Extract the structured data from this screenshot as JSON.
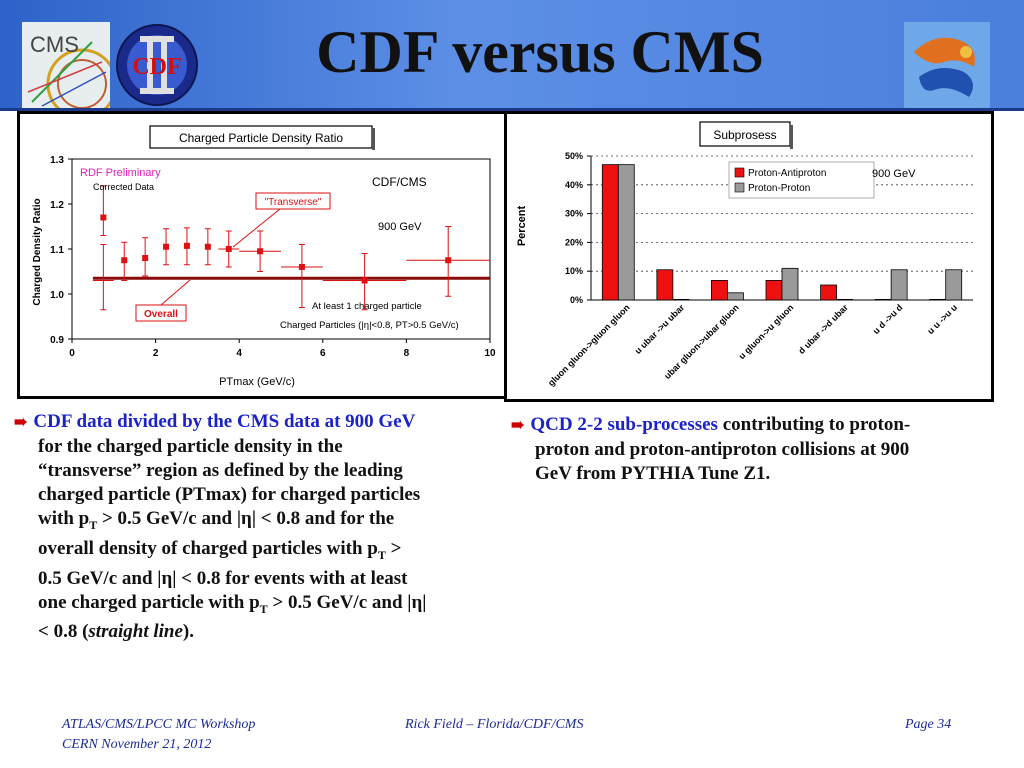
{
  "slide": {
    "title": "CDF versus CMS",
    "logos": {
      "cms": "CMS",
      "cdf": "CDF"
    }
  },
  "chart_data": [
    {
      "type": "scatter",
      "title": "Charged Particle Density Ratio",
      "xlabel": "PTmax  (GeV/c)",
      "ylabel": "Charged Density Ratio",
      "xlim": [
        0,
        10
      ],
      "ylim": [
        0.9,
        1.3
      ],
      "xticks": [
        "0",
        "2",
        "4",
        "6",
        "8",
        "10"
      ],
      "yticks": [
        "0.9",
        "1.0",
        "1.1",
        "1.2",
        "1.3"
      ],
      "points": [
        {
          "x": 0.75,
          "y": 1.03,
          "lo": 0.965,
          "hi": 1.11,
          "xerr": 0.25
        },
        {
          "x": 0.75,
          "y": 1.17,
          "lo": 1.13,
          "hi": 1.24,
          "xerr": 0.0
        },
        {
          "x": 1.25,
          "y": 1.075,
          "lo": 1.03,
          "hi": 1.115,
          "xerr": 0.0
        },
        {
          "x": 1.75,
          "y": 1.08,
          "lo": 1.04,
          "hi": 1.125,
          "xerr": 0.0
        },
        {
          "x": 2.25,
          "y": 1.105,
          "lo": 1.065,
          "hi": 1.145,
          "xerr": 0.0
        },
        {
          "x": 2.75,
          "y": 1.107,
          "lo": 1.065,
          "hi": 1.147,
          "xerr": 0.0
        },
        {
          "x": 3.25,
          "y": 1.105,
          "lo": 1.065,
          "hi": 1.145,
          "xerr": 0.0
        },
        {
          "x": 3.75,
          "y": 1.1,
          "lo": 1.06,
          "hi": 1.14,
          "xerr": 0.25
        },
        {
          "x": 4.5,
          "y": 1.095,
          "lo": 1.05,
          "hi": 1.14,
          "xerr": 0.5
        },
        {
          "x": 5.5,
          "y": 1.06,
          "lo": 0.97,
          "hi": 1.11,
          "xerr": 0.5
        },
        {
          "x": 7.0,
          "y": 1.03,
          "lo": 0.965,
          "hi": 1.09,
          "xerr": 1.0
        },
        {
          "x": 9.0,
          "y": 1.075,
          "lo": 0.995,
          "hi": 1.15,
          "xerr": 1.0
        }
      ],
      "overall_line": {
        "y": 1.035,
        "x_from": 0.5,
        "x_to": 10.0
      },
      "labels": {
        "preliminary": "RDF Preliminary",
        "corrected": "Corrected Data",
        "cdfcms": "CDF/CMS",
        "transverse": "\"Transverse\"",
        "energy": "900 GeV",
        "overall": "Overall",
        "atleast": "At least 1 charged particle",
        "cuts": "Charged Particles (|η|<0.8, PT>0.5 GeV/c)"
      },
      "colors": {
        "marker": "#dd1111",
        "overall_line": "#8b0a0a",
        "label_red": "#dd1111",
        "prelim": "#e020c0"
      }
    },
    {
      "type": "bar",
      "title": "Subprosess",
      "ylabel": "Percent",
      "ylim": [
        0,
        50
      ],
      "yticks": [
        "0%",
        "10%",
        "20%",
        "30%",
        "40%",
        "50%"
      ],
      "categories": [
        "gluon gluon->gluon gluon",
        "u ubar ->u ubar",
        "ubar gluon->ubar gluon",
        "u gluon->u gluon",
        "d ubar ->d ubar",
        "u d ->u d",
        "u u ->u u"
      ],
      "series": [
        {
          "name": "Proton-Antiproton",
          "color": "#ee1111",
          "values": [
            47,
            10.5,
            6.8,
            6.8,
            5.2,
            0.2,
            0.2
          ]
        },
        {
          "name": "Proton-Proton",
          "color": "#9a9a9a",
          "values": [
            47,
            0.2,
            2.5,
            11,
            0.2,
            10.5,
            10.5
          ]
        }
      ],
      "annotation": "900 GeV",
      "legend_placement": "top-right"
    }
  ],
  "bullets": {
    "left": {
      "lead": "CDF data divided by the CMS data at 900 GeV",
      "lines": [
        "for the charged particle density in the",
        "“transverse” region as defined by the leading",
        "charged particle (PTmax) for charged particles",
        "with p",
        "overall density of charged particles with p",
        "0.5 GeV/c and |",
        "one charged particle with p",
        "< 0.8 ("
      ],
      "sub_T": "T",
      "eta": "η",
      "l4_rest": " > 0.5 GeV/c and |",
      "l4_end": "| < 0.8 and for the",
      "l5_end": " >",
      "l6_end": "| < 0.8 for events with at least",
      "l7_mid": " > 0.5 GeV/c and |",
      "l7_end": "|",
      "l8_italic": "straight line",
      "l8_end": ")."
    },
    "right": {
      "lead": "QCD 2-2 sub-processes",
      "rest1": " contributing to proton-",
      "line2": "proton and proton-antiproton collisions at 900",
      "line3": "GeV from PYTHIA Tune Z1."
    }
  },
  "footer": {
    "left1": "ATLAS/CMS/LPCC MC Workshop",
    "left2": "CERN November 21, 2012",
    "center": "Rick Field – Florida/CDF/CMS",
    "right": "Page 34"
  }
}
